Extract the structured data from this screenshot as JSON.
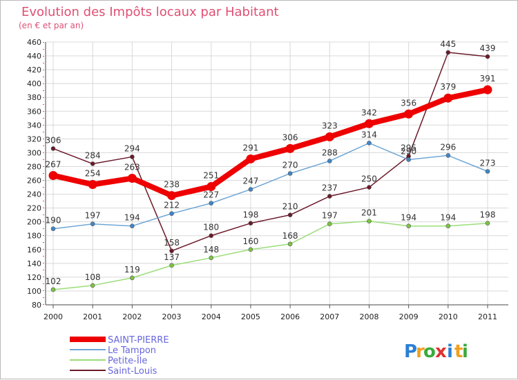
{
  "chart_data": {
    "type": "line",
    "title": "Evolution des Impôts locaux par Habitant",
    "subtitle": "(en € et par an)",
    "xlabel": "",
    "ylabel": "",
    "ylim": [
      80,
      460
    ],
    "y_ticks": [
      80,
      100,
      120,
      140,
      160,
      180,
      200,
      220,
      240,
      260,
      280,
      300,
      320,
      340,
      360,
      380,
      400,
      420,
      440,
      460
    ],
    "categories": [
      "2000",
      "2001",
      "2002",
      "2003",
      "2004",
      "2005",
      "2006",
      "2007",
      "2008",
      "2009",
      "2010",
      "2011"
    ],
    "grid": true,
    "legend_position": "bottom-left",
    "series": [
      {
        "name": "Saint-Louis",
        "color": "#6b1a2a",
        "dot": "#6b1a2a",
        "emphasis": false,
        "values": [
          306,
          284,
          294,
          158,
          180,
          198,
          210,
          237,
          250,
          295,
          445,
          439
        ]
      },
      {
        "name": "Petite-Île",
        "color": "#99dd77",
        "dot": "#7cc444",
        "emphasis": false,
        "values": [
          102,
          108,
          119,
          137,
          148,
          160,
          168,
          197,
          201,
          194,
          194,
          198
        ]
      },
      {
        "name": "Le Tampon",
        "color": "#6fa6d6",
        "dot": "#3f86c8",
        "emphasis": false,
        "values": [
          190,
          197,
          194,
          212,
          227,
          247,
          270,
          288,
          314,
          290,
          296,
          273
        ]
      },
      {
        "name": "SAINT-PIERRE",
        "color": "#ee0000",
        "dot": "#ee0000",
        "emphasis": true,
        "values": [
          267,
          254,
          263,
          238,
          251,
          291,
          306,
          323,
          342,
          356,
          379,
          391
        ]
      }
    ],
    "legend_order": [
      "SAINT-PIERRE",
      "Le Tampon",
      "Petite-Île",
      "Saint-Louis"
    ]
  },
  "watermark": {
    "letters": [
      "P",
      "r",
      "o",
      "x",
      "i",
      "t",
      "i"
    ],
    "colors": [
      "#2a7fd4",
      "#f0a020",
      "#3aaa3a",
      "#e03030",
      "#2a7fd4",
      "#f0a020",
      "#3aaa3a"
    ]
  }
}
